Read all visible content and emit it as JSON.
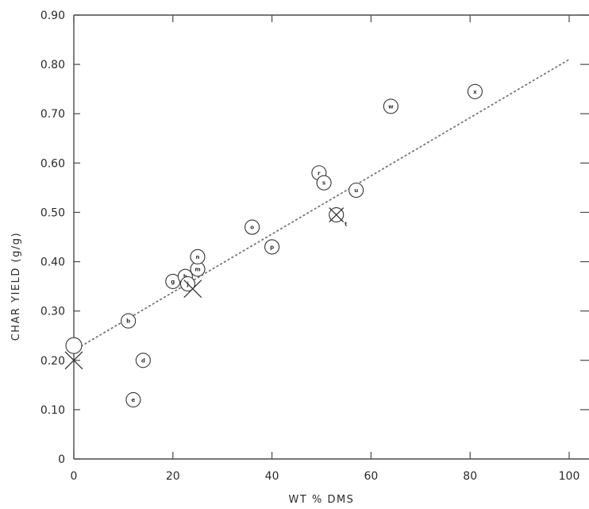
{
  "chart_data": {
    "type": "scatter",
    "xlabel": "WT % DMS",
    "ylabel": "CHAR YIELD  (g/g)",
    "xlim": [
      0,
      100
    ],
    "ylim": [
      0,
      0.9
    ],
    "x_ticks": [
      "0",
      "20",
      "40",
      "60",
      "80",
      "100"
    ],
    "y_ticks": [
      "0",
      "0.10",
      "0.20",
      "0.30",
      "0.40",
      "0.50",
      "0.60",
      "0.70",
      "0.80",
      "0.90"
    ],
    "x_tick_values": [
      0,
      20,
      40,
      60,
      80,
      100
    ],
    "y_tick_values": [
      0,
      0.1,
      0.2,
      0.3,
      0.4,
      0.5,
      0.6,
      0.7,
      0.8,
      0.9
    ],
    "grid": false,
    "trendline": {
      "style": "dotted",
      "x": [
        0,
        100
      ],
      "y": [
        0.22,
        0.81
      ]
    },
    "points": [
      {
        "label": "",
        "x": 0,
        "y": 0.23,
        "marker": "open-circle"
      },
      {
        "label": "",
        "x": 0,
        "y": 0.2,
        "marker": "cross"
      },
      {
        "label": "b",
        "x": 11,
        "y": 0.28,
        "marker": "labeled-circle"
      },
      {
        "label": "d",
        "x": 14,
        "y": 0.2,
        "marker": "labeled-circle"
      },
      {
        "label": "e",
        "x": 12,
        "y": 0.12,
        "marker": "labeled-circle"
      },
      {
        "label": "g",
        "x": 20,
        "y": 0.36,
        "marker": "labeled-circle"
      },
      {
        "label": "h",
        "x": 22.5,
        "y": 0.37,
        "marker": "labeled-circle"
      },
      {
        "label": "j",
        "x": 23,
        "y": 0.355,
        "marker": "labeled-circle"
      },
      {
        "label": "",
        "x": 24,
        "y": 0.345,
        "marker": "cross"
      },
      {
        "label": "m",
        "x": 25,
        "y": 0.385,
        "marker": "labeled-circle"
      },
      {
        "label": "n",
        "x": 25,
        "y": 0.41,
        "marker": "labeled-circle"
      },
      {
        "label": "o",
        "x": 36,
        "y": 0.47,
        "marker": "labeled-circle"
      },
      {
        "label": "p",
        "x": 40,
        "y": 0.43,
        "marker": "labeled-circle"
      },
      {
        "label": "r",
        "x": 49.5,
        "y": 0.58,
        "marker": "labeled-circle"
      },
      {
        "label": "s",
        "x": 50.5,
        "y": 0.56,
        "marker": "labeled-circle"
      },
      {
        "label": "t",
        "x": 53,
        "y": 0.495,
        "marker": "crossed-circle"
      },
      {
        "label": "u",
        "x": 57,
        "y": 0.545,
        "marker": "labeled-circle"
      },
      {
        "label": "w",
        "x": 64,
        "y": 0.715,
        "marker": "labeled-circle"
      },
      {
        "label": "x",
        "x": 81,
        "y": 0.745,
        "marker": "labeled-circle"
      }
    ]
  }
}
